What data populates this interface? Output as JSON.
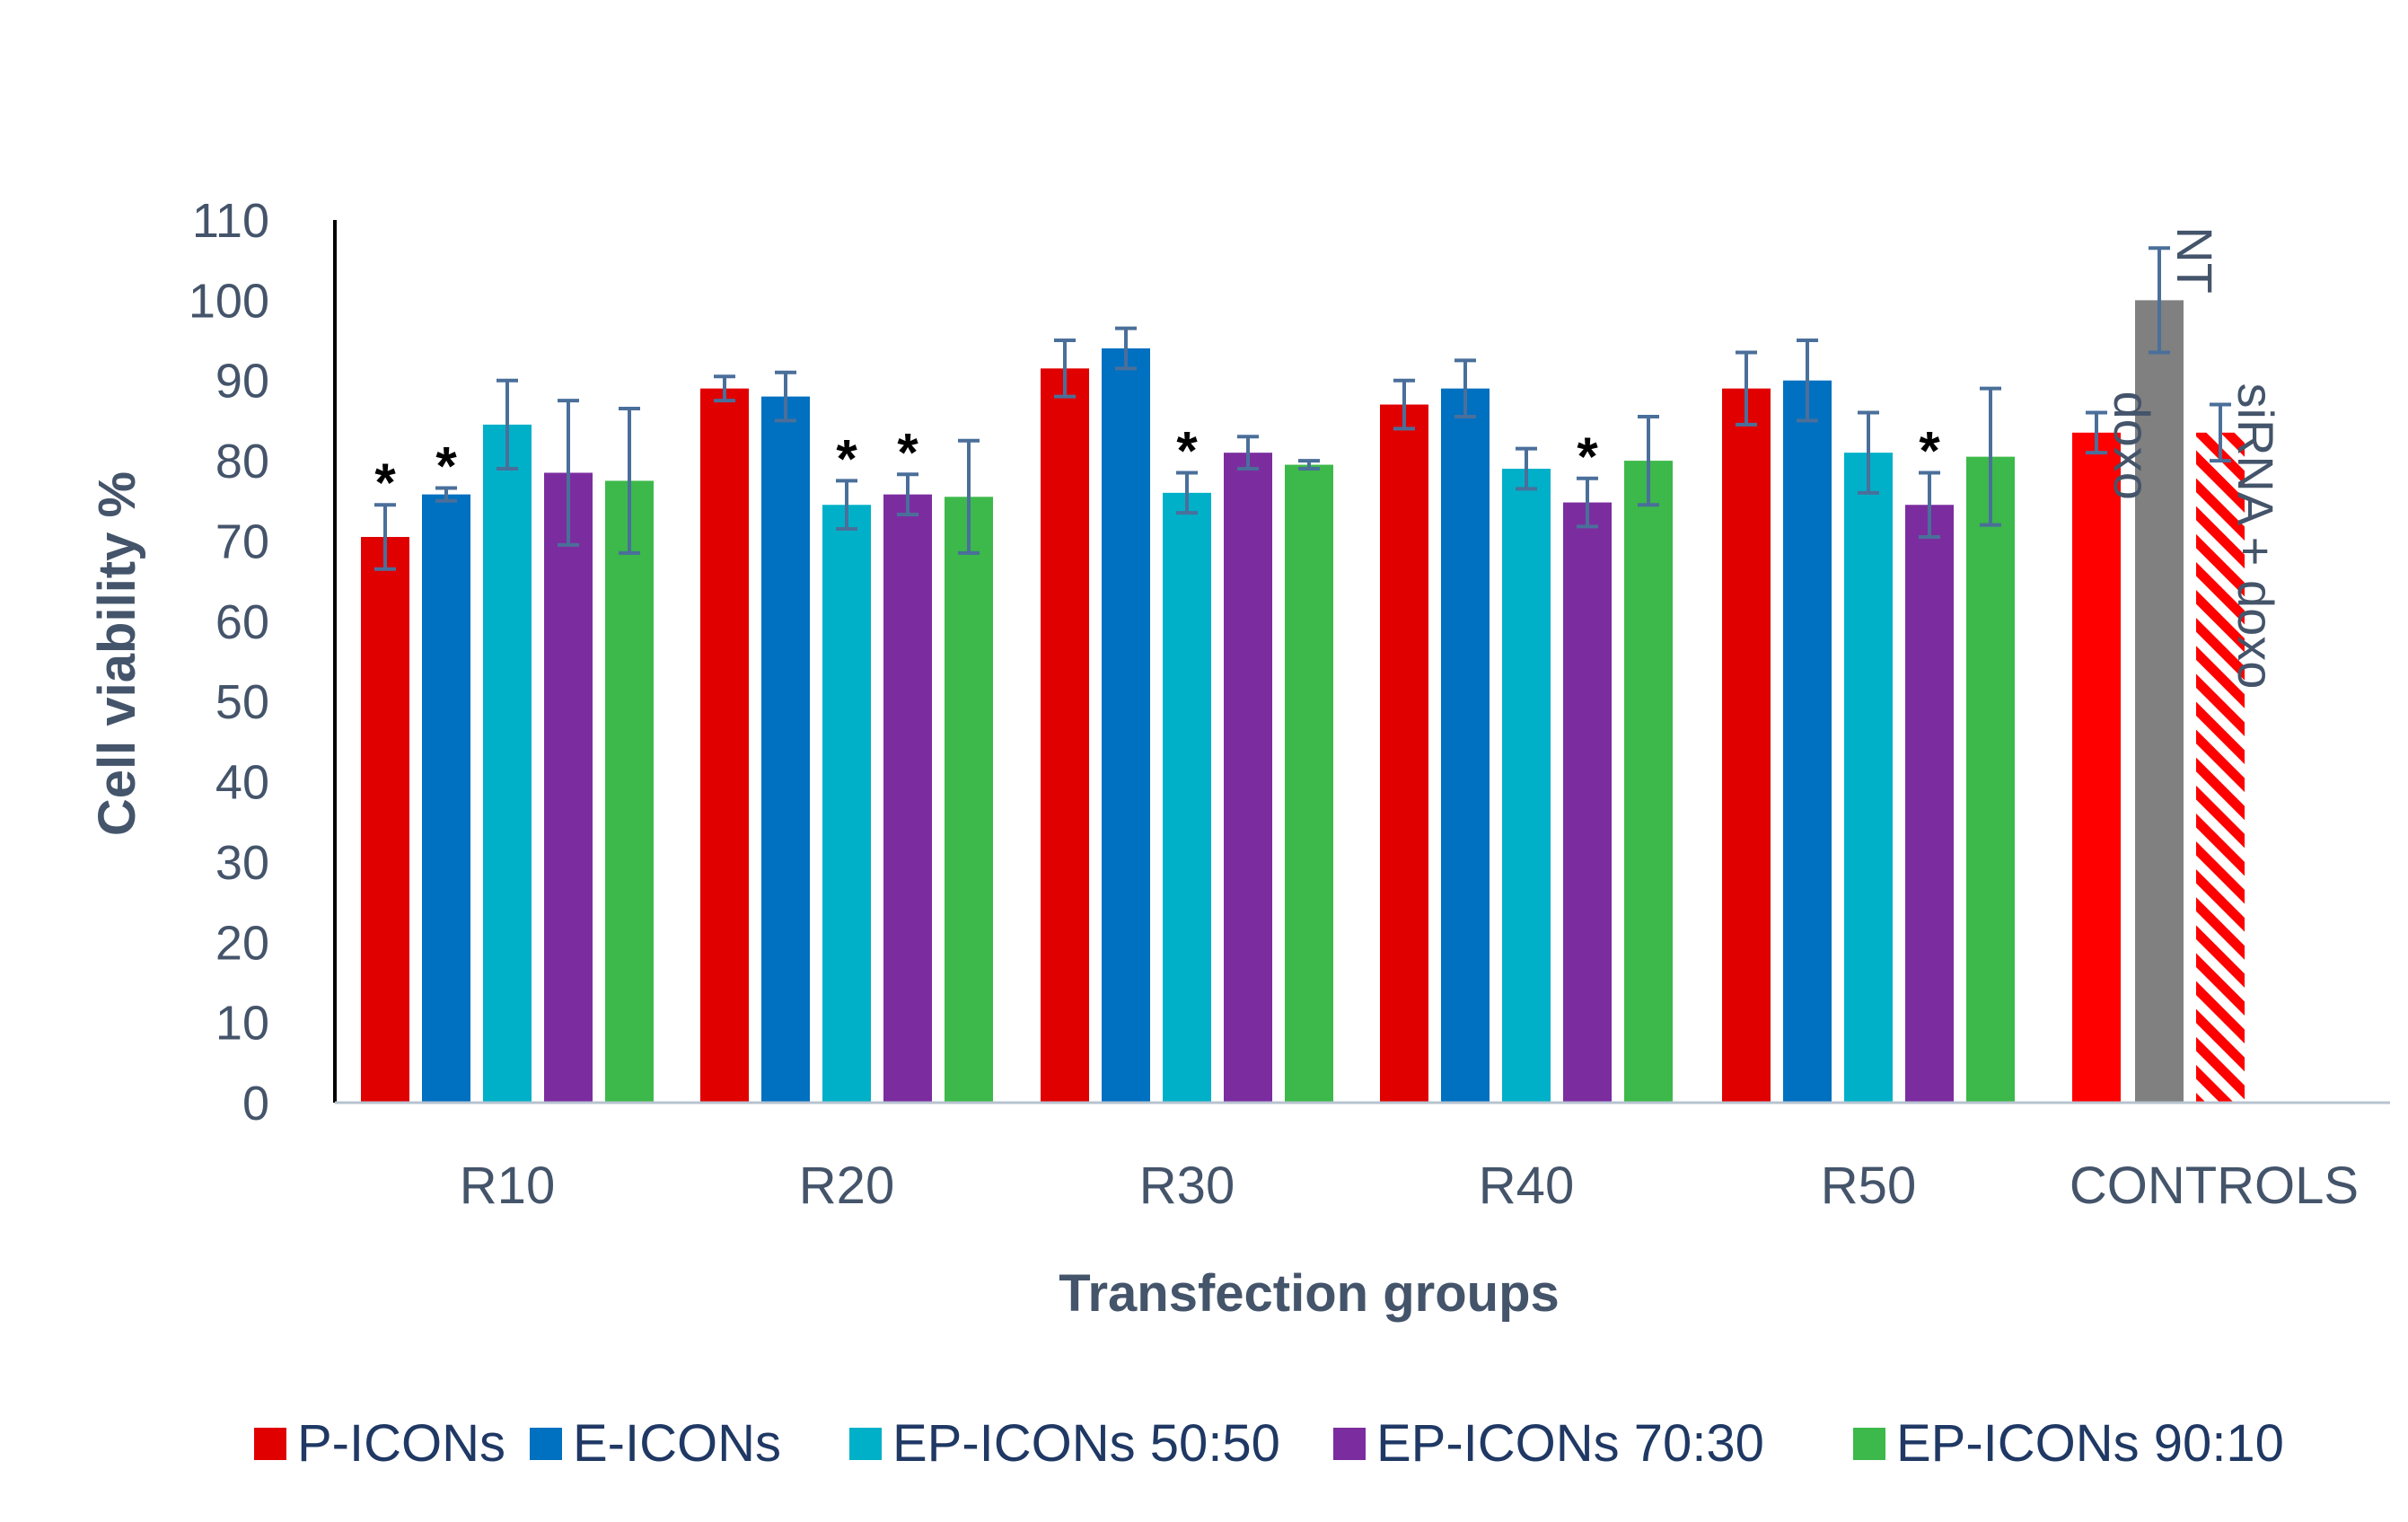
{
  "chart_data": {
    "type": "bar",
    "xlabel": "Transfection groups",
    "ylabel": "Cell viability %",
    "ylim": [
      0,
      110
    ],
    "yticks": [
      0,
      10,
      20,
      30,
      40,
      50,
      60,
      70,
      80,
      90,
      100,
      110
    ],
    "categories": [
      "R10",
      "R20",
      "R30",
      "R40",
      "R50"
    ],
    "series": [
      {
        "name": "P-ICONs",
        "color": "#e00000",
        "values": [
          70.5,
          89,
          91.5,
          87,
          89
        ],
        "errors": [
          4,
          1.5,
          3.5,
          3,
          4.5
        ],
        "significant": [
          true,
          false,
          false,
          false,
          false
        ]
      },
      {
        "name": "E-ICONs",
        "color": "#0070c0",
        "values": [
          75.8,
          88,
          94,
          89,
          90
        ],
        "errors": [
          0.8,
          3,
          2.5,
          3.5,
          5
        ],
        "significant": [
          true,
          false,
          false,
          false,
          false
        ]
      },
      {
        "name": "EP-ICONs 50:50",
        "color": "#00b0c8",
        "values": [
          84.5,
          74.5,
          76,
          79,
          81
        ],
        "errors": [
          5.5,
          3,
          2.5,
          2.5,
          5
        ],
        "significant": [
          false,
          true,
          true,
          false,
          false
        ]
      },
      {
        "name": "EP-ICONs 70:30",
        "color": "#7b2d9f",
        "values": [
          78.5,
          75.8,
          81,
          74.8,
          74.5
        ],
        "errors": [
          9,
          2.5,
          2,
          3,
          4
        ],
        "significant": [
          false,
          true,
          false,
          true,
          true
        ]
      },
      {
        "name": "EP-ICONs 90:10",
        "color": "#3cb94a",
        "values": [
          77.5,
          75.5,
          79.5,
          80,
          80.5
        ],
        "errors": [
          9,
          7,
          0.5,
          5.5,
          8.5
        ],
        "significant": [
          false,
          false,
          false,
          false,
          false
        ]
      }
    ],
    "controls": {
      "label": "CONTROLS",
      "bars": [
        {
          "name": "doxo",
          "value": 83.5,
          "error": 2.5,
          "color": "#ff0000",
          "hatched": false
        },
        {
          "name": "NT",
          "value": 100,
          "error": 6.5,
          "color": "#808080",
          "hatched": false
        },
        {
          "name": "siRNA + doxo",
          "value": 83.5,
          "error": 3.5,
          "color": "#ff0000",
          "hatched": true
        }
      ]
    },
    "significance_marker": "*",
    "legend_position": "bottom",
    "error_bar_color": "#4a6f9a"
  }
}
